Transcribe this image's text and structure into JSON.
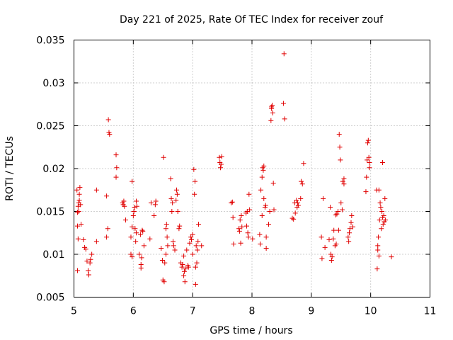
{
  "chart_data": {
    "type": "scatter",
    "title": "Day 221 of 2025, Rate Of TEC Index for receiver zouf",
    "xlabel": "GPS time / hours",
    "ylabel": "ROTI / TECUs",
    "xlim": [
      5,
      11
    ],
    "ylim": [
      0.005,
      0.035
    ],
    "grid": true,
    "x_ticks": [
      5,
      6,
      7,
      8,
      9,
      10,
      11
    ],
    "x_tick_labels": [
      "5",
      "6",
      "7",
      "8",
      "9",
      "10",
      "11"
    ],
    "y_ticks": [
      0.005,
      0.01,
      0.015,
      0.02,
      0.025,
      0.03,
      0.035
    ],
    "y_tick_labels": [
      "0.005",
      "0.01",
      "0.015",
      "0.02",
      "0.025",
      "0.03",
      "0.035"
    ],
    "marker": "+",
    "marker_color": "#e00000",
    "points": [
      [
        5.05,
        0.0175
      ],
      [
        5.06,
        0.0133
      ],
      [
        5.06,
        0.0081
      ],
      [
        5.07,
        0.0118
      ],
      [
        5.08,
        0.016
      ],
      [
        5.09,
        0.0163
      ],
      [
        5.1,
        0.0178
      ],
      [
        5.11,
        0.0158
      ],
      [
        5.12,
        0.0135
      ],
      [
        5.16,
        0.0117
      ],
      [
        5.18,
        0.0108
      ],
      [
        5.2,
        0.0106
      ],
      [
        5.22,
        0.0092
      ],
      [
        5.24,
        0.0081
      ],
      [
        5.25,
        0.0076
      ],
      [
        5.27,
        0.009
      ],
      [
        5.28,
        0.0094
      ],
      [
        5.3,
        0.01
      ],
      [
        5.06,
        0.0149
      ],
      [
        5.07,
        0.0156
      ],
      [
        5.08,
        0.015
      ],
      [
        5.09,
        0.017
      ],
      [
        5.38,
        0.0115
      ],
      [
        5.38,
        0.0175
      ],
      [
        5.55,
        0.012
      ],
      [
        5.55,
        0.0168
      ],
      [
        5.57,
        0.013
      ],
      [
        5.58,
        0.0257
      ],
      [
        5.59,
        0.0242
      ],
      [
        5.6,
        0.024
      ],
      [
        5.71,
        0.0216
      ],
      [
        5.71,
        0.019
      ],
      [
        5.72,
        0.0201
      ],
      [
        5.82,
        0.016
      ],
      [
        5.83,
        0.0158
      ],
      [
        5.84,
        0.0162
      ],
      [
        5.85,
        0.0156
      ],
      [
        5.87,
        0.014
      ],
      [
        5.96,
        0.01
      ],
      [
        5.96,
        0.012
      ],
      [
        5.98,
        0.0097
      ],
      [
        5.98,
        0.0132
      ],
      [
        5.98,
        0.0185
      ],
      [
        6.0,
        0.0145
      ],
      [
        6.01,
        0.015
      ],
      [
        6.02,
        0.0155
      ],
      [
        6.03,
        0.013
      ],
      [
        6.04,
        0.0115
      ],
      [
        6.05,
        0.0162
      ],
      [
        6.05,
        0.0125
      ],
      [
        6.06,
        0.0156
      ],
      [
        6.1,
        0.01
      ],
      [
        6.12,
        0.0123
      ],
      [
        6.13,
        0.0088
      ],
      [
        6.14,
        0.0096
      ],
      [
        6.13,
        0.0084
      ],
      [
        6.15,
        0.0128
      ],
      [
        6.16,
        0.0127
      ],
      [
        6.18,
        0.011
      ],
      [
        6.28,
        0.0118
      ],
      [
        6.3,
        0.016
      ],
      [
        6.35,
        0.0145
      ],
      [
        6.37,
        0.0158
      ],
      [
        6.38,
        0.0162
      ],
      [
        6.47,
        0.0107
      ],
      [
        6.49,
        0.0093
      ],
      [
        6.5,
        0.007
      ],
      [
        6.51,
        0.0213
      ],
      [
        6.52,
        0.0068
      ],
      [
        6.53,
        0.009
      ],
      [
        6.55,
        0.01
      ],
      [
        6.55,
        0.013
      ],
      [
        6.56,
        0.0135
      ],
      [
        6.57,
        0.012
      ],
      [
        6.58,
        0.011
      ],
      [
        6.63,
        0.0188
      ],
      [
        6.64,
        0.0165
      ],
      [
        6.65,
        0.015
      ],
      [
        6.66,
        0.016
      ],
      [
        6.67,
        0.0115
      ],
      [
        6.68,
        0.011
      ],
      [
        6.7,
        0.0105
      ],
      [
        6.72,
        0.0163
      ],
      [
        6.73,
        0.0175
      ],
      [
        6.74,
        0.017
      ],
      [
        6.75,
        0.015
      ],
      [
        6.77,
        0.013
      ],
      [
        6.78,
        0.0133
      ],
      [
        6.8,
        0.009
      ],
      [
        6.82,
        0.0085
      ],
      [
        6.83,
        0.0088
      ],
      [
        6.85,
        0.0098
      ],
      [
        6.85,
        0.0075
      ],
      [
        6.86,
        0.008
      ],
      [
        6.87,
        0.0068
      ],
      [
        6.88,
        0.0083
      ],
      [
        6.9,
        0.0105
      ],
      [
        6.92,
        0.0087
      ],
      [
        6.93,
        0.0085
      ],
      [
        6.95,
        0.0113
      ],
      [
        6.97,
        0.012
      ],
      [
        6.98,
        0.0117
      ],
      [
        7.0,
        0.0123
      ],
      [
        7.0,
        0.01
      ],
      [
        7.02,
        0.0199
      ],
      [
        7.03,
        0.017
      ],
      [
        7.04,
        0.0185
      ],
      [
        7.05,
        0.0085
      ],
      [
        7.05,
        0.0065
      ],
      [
        7.06,
        0.011
      ],
      [
        7.07,
        0.009
      ],
      [
        7.08,
        0.0105
      ],
      [
        7.09,
        0.0115
      ],
      [
        7.1,
        0.0135
      ],
      [
        7.15,
        0.011
      ],
      [
        7.45,
        0.0213
      ],
      [
        7.46,
        0.0207
      ],
      [
        7.47,
        0.0201
      ],
      [
        7.48,
        0.0205
      ],
      [
        7.49,
        0.0214
      ],
      [
        7.65,
        0.016
      ],
      [
        7.67,
        0.0161
      ],
      [
        7.68,
        0.0143
      ],
      [
        7.69,
        0.0112
      ],
      [
        7.78,
        0.013
      ],
      [
        7.79,
        0.0127
      ],
      [
        7.8,
        0.014
      ],
      [
        7.81,
        0.0113
      ],
      [
        7.82,
        0.0145
      ],
      [
        7.83,
        0.0132
      ],
      [
        7.9,
        0.0148
      ],
      [
        7.91,
        0.0133
      ],
      [
        7.92,
        0.015
      ],
      [
        7.93,
        0.0125
      ],
      [
        7.94,
        0.012
      ],
      [
        7.95,
        0.017
      ],
      [
        7.96,
        0.0152
      ],
      [
        8.01,
        0.0118
      ],
      [
        8.13,
        0.0123
      ],
      [
        8.14,
        0.0112
      ],
      [
        8.15,
        0.0175
      ],
      [
        8.17,
        0.019
      ],
      [
        8.17,
        0.0145
      ],
      [
        8.18,
        0.0201
      ],
      [
        8.19,
        0.0198
      ],
      [
        8.2,
        0.0165
      ],
      [
        8.2,
        0.0203
      ],
      [
        8.22,
        0.0155
      ],
      [
        8.23,
        0.0157
      ],
      [
        8.24,
        0.012
      ],
      [
        8.24,
        0.0107
      ],
      [
        8.28,
        0.0135
      ],
      [
        8.3,
        0.015
      ],
      [
        8.32,
        0.0256
      ],
      [
        8.33,
        0.027
      ],
      [
        8.33,
        0.0272
      ],
      [
        8.34,
        0.0274
      ],
      [
        8.35,
        0.0265
      ],
      [
        8.36,
        0.0183
      ],
      [
        8.37,
        0.0152
      ],
      [
        8.53,
        0.0276
      ],
      [
        8.54,
        0.0334
      ],
      [
        8.55,
        0.0258
      ],
      [
        8.68,
        0.0142
      ],
      [
        8.7,
        0.0141
      ],
      [
        8.72,
        0.016
      ],
      [
        8.73,
        0.0148
      ],
      [
        8.75,
        0.0163
      ],
      [
        8.76,
        0.0155
      ],
      [
        8.77,
        0.016
      ],
      [
        8.78,
        0.0157
      ],
      [
        8.82,
        0.0165
      ],
      [
        8.83,
        0.0185
      ],
      [
        8.85,
        0.0182
      ],
      [
        8.87,
        0.0206
      ],
      [
        9.17,
        0.012
      ],
      [
        9.18,
        0.0095
      ],
      [
        9.2,
        0.0165
      ],
      [
        9.23,
        0.0108
      ],
      [
        9.3,
        0.0117
      ],
      [
        9.32,
        0.0155
      ],
      [
        9.33,
        0.01
      ],
      [
        9.34,
        0.0093
      ],
      [
        9.35,
        0.0097
      ],
      [
        9.37,
        0.0118
      ],
      [
        9.38,
        0.0128
      ],
      [
        9.4,
        0.011
      ],
      [
        9.41,
        0.0146
      ],
      [
        9.42,
        0.0112
      ],
      [
        9.43,
        0.0147
      ],
      [
        9.45,
        0.015
      ],
      [
        9.46,
        0.0128
      ],
      [
        9.47,
        0.024
      ],
      [
        9.48,
        0.0225
      ],
      [
        9.49,
        0.021
      ],
      [
        9.5,
        0.016
      ],
      [
        9.52,
        0.0152
      ],
      [
        9.53,
        0.0185
      ],
      [
        9.55,
        0.0182
      ],
      [
        9.55,
        0.0188
      ],
      [
        9.62,
        0.012
      ],
      [
        9.63,
        0.0115
      ],
      [
        9.64,
        0.0125
      ],
      [
        9.65,
        0.013
      ],
      [
        9.67,
        0.0137
      ],
      [
        9.68,
        0.0145
      ],
      [
        9.7,
        0.0132
      ],
      [
        9.92,
        0.0173
      ],
      [
        9.93,
        0.019
      ],
      [
        9.94,
        0.021
      ],
      [
        9.95,
        0.023
      ],
      [
        9.96,
        0.0233
      ],
      [
        9.97,
        0.0213
      ],
      [
        9.98,
        0.0201
      ],
      [
        9.98,
        0.0207
      ],
      [
        10.1,
        0.0175
      ],
      [
        10.11,
        0.0083
      ],
      [
        10.12,
        0.0105
      ],
      [
        10.13,
        0.012
      ],
      [
        10.14,
        0.0175
      ],
      [
        10.15,
        0.014
      ],
      [
        10.16,
        0.016
      ],
      [
        10.17,
        0.0155
      ],
      [
        10.18,
        0.013
      ],
      [
        10.19,
        0.015
      ],
      [
        10.2,
        0.0143
      ],
      [
        10.21,
        0.0135
      ],
      [
        10.22,
        0.0145
      ],
      [
        10.23,
        0.0138
      ],
      [
        10.24,
        0.0165
      ],
      [
        10.25,
        0.014
      ],
      [
        10.2,
        0.0207
      ],
      [
        10.12,
        0.011
      ],
      [
        10.14,
        0.0098
      ],
      [
        10.35,
        0.0097
      ]
    ]
  }
}
